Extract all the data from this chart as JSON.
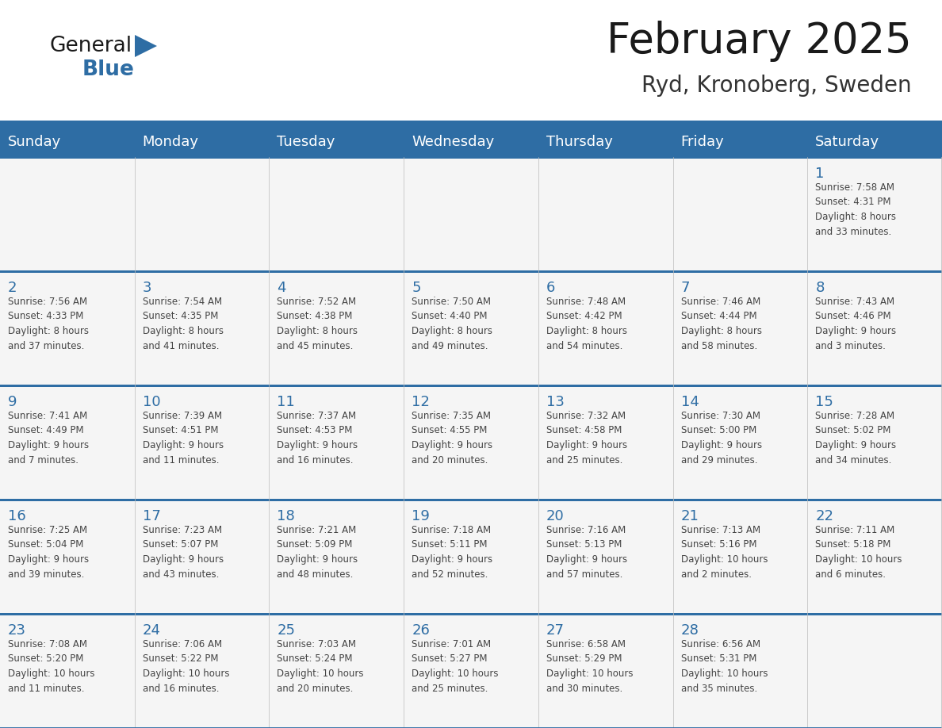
{
  "title": "February 2025",
  "subtitle": "Ryd, Kronoberg, Sweden",
  "header_bg": "#2E6DA4",
  "header_text_color": "#FFFFFF",
  "cell_bg": "#F5F5F5",
  "day_number_color": "#2E6DA4",
  "text_color": "#444444",
  "border_color": "#CCCCCC",
  "row_separator_color": "#2E6DA4",
  "days_of_week": [
    "Sunday",
    "Monday",
    "Tuesday",
    "Wednesday",
    "Thursday",
    "Friday",
    "Saturday"
  ],
  "calendar_data": [
    [
      {
        "day": null,
        "info": null
      },
      {
        "day": null,
        "info": null
      },
      {
        "day": null,
        "info": null
      },
      {
        "day": null,
        "info": null
      },
      {
        "day": null,
        "info": null
      },
      {
        "day": null,
        "info": null
      },
      {
        "day": 1,
        "info": "Sunrise: 7:58 AM\nSunset: 4:31 PM\nDaylight: 8 hours\nand 33 minutes."
      }
    ],
    [
      {
        "day": 2,
        "info": "Sunrise: 7:56 AM\nSunset: 4:33 PM\nDaylight: 8 hours\nand 37 minutes."
      },
      {
        "day": 3,
        "info": "Sunrise: 7:54 AM\nSunset: 4:35 PM\nDaylight: 8 hours\nand 41 minutes."
      },
      {
        "day": 4,
        "info": "Sunrise: 7:52 AM\nSunset: 4:38 PM\nDaylight: 8 hours\nand 45 minutes."
      },
      {
        "day": 5,
        "info": "Sunrise: 7:50 AM\nSunset: 4:40 PM\nDaylight: 8 hours\nand 49 minutes."
      },
      {
        "day": 6,
        "info": "Sunrise: 7:48 AM\nSunset: 4:42 PM\nDaylight: 8 hours\nand 54 minutes."
      },
      {
        "day": 7,
        "info": "Sunrise: 7:46 AM\nSunset: 4:44 PM\nDaylight: 8 hours\nand 58 minutes."
      },
      {
        "day": 8,
        "info": "Sunrise: 7:43 AM\nSunset: 4:46 PM\nDaylight: 9 hours\nand 3 minutes."
      }
    ],
    [
      {
        "day": 9,
        "info": "Sunrise: 7:41 AM\nSunset: 4:49 PM\nDaylight: 9 hours\nand 7 minutes."
      },
      {
        "day": 10,
        "info": "Sunrise: 7:39 AM\nSunset: 4:51 PM\nDaylight: 9 hours\nand 11 minutes."
      },
      {
        "day": 11,
        "info": "Sunrise: 7:37 AM\nSunset: 4:53 PM\nDaylight: 9 hours\nand 16 minutes."
      },
      {
        "day": 12,
        "info": "Sunrise: 7:35 AM\nSunset: 4:55 PM\nDaylight: 9 hours\nand 20 minutes."
      },
      {
        "day": 13,
        "info": "Sunrise: 7:32 AM\nSunset: 4:58 PM\nDaylight: 9 hours\nand 25 minutes."
      },
      {
        "day": 14,
        "info": "Sunrise: 7:30 AM\nSunset: 5:00 PM\nDaylight: 9 hours\nand 29 minutes."
      },
      {
        "day": 15,
        "info": "Sunrise: 7:28 AM\nSunset: 5:02 PM\nDaylight: 9 hours\nand 34 minutes."
      }
    ],
    [
      {
        "day": 16,
        "info": "Sunrise: 7:25 AM\nSunset: 5:04 PM\nDaylight: 9 hours\nand 39 minutes."
      },
      {
        "day": 17,
        "info": "Sunrise: 7:23 AM\nSunset: 5:07 PM\nDaylight: 9 hours\nand 43 minutes."
      },
      {
        "day": 18,
        "info": "Sunrise: 7:21 AM\nSunset: 5:09 PM\nDaylight: 9 hours\nand 48 minutes."
      },
      {
        "day": 19,
        "info": "Sunrise: 7:18 AM\nSunset: 5:11 PM\nDaylight: 9 hours\nand 52 minutes."
      },
      {
        "day": 20,
        "info": "Sunrise: 7:16 AM\nSunset: 5:13 PM\nDaylight: 9 hours\nand 57 minutes."
      },
      {
        "day": 21,
        "info": "Sunrise: 7:13 AM\nSunset: 5:16 PM\nDaylight: 10 hours\nand 2 minutes."
      },
      {
        "day": 22,
        "info": "Sunrise: 7:11 AM\nSunset: 5:18 PM\nDaylight: 10 hours\nand 6 minutes."
      }
    ],
    [
      {
        "day": 23,
        "info": "Sunrise: 7:08 AM\nSunset: 5:20 PM\nDaylight: 10 hours\nand 11 minutes."
      },
      {
        "day": 24,
        "info": "Sunrise: 7:06 AM\nSunset: 5:22 PM\nDaylight: 10 hours\nand 16 minutes."
      },
      {
        "day": 25,
        "info": "Sunrise: 7:03 AM\nSunset: 5:24 PM\nDaylight: 10 hours\nand 20 minutes."
      },
      {
        "day": 26,
        "info": "Sunrise: 7:01 AM\nSunset: 5:27 PM\nDaylight: 10 hours\nand 25 minutes."
      },
      {
        "day": 27,
        "info": "Sunrise: 6:58 AM\nSunset: 5:29 PM\nDaylight: 10 hours\nand 30 minutes."
      },
      {
        "day": 28,
        "info": "Sunrise: 6:56 AM\nSunset: 5:31 PM\nDaylight: 10 hours\nand 35 minutes."
      },
      {
        "day": null,
        "info": null
      }
    ]
  ],
  "logo_text_general": "General",
  "logo_text_blue": "Blue",
  "logo_color_general": "#1a1a1a",
  "logo_color_blue": "#2E6DA4",
  "logo_triangle_color": "#2E6DA4"
}
